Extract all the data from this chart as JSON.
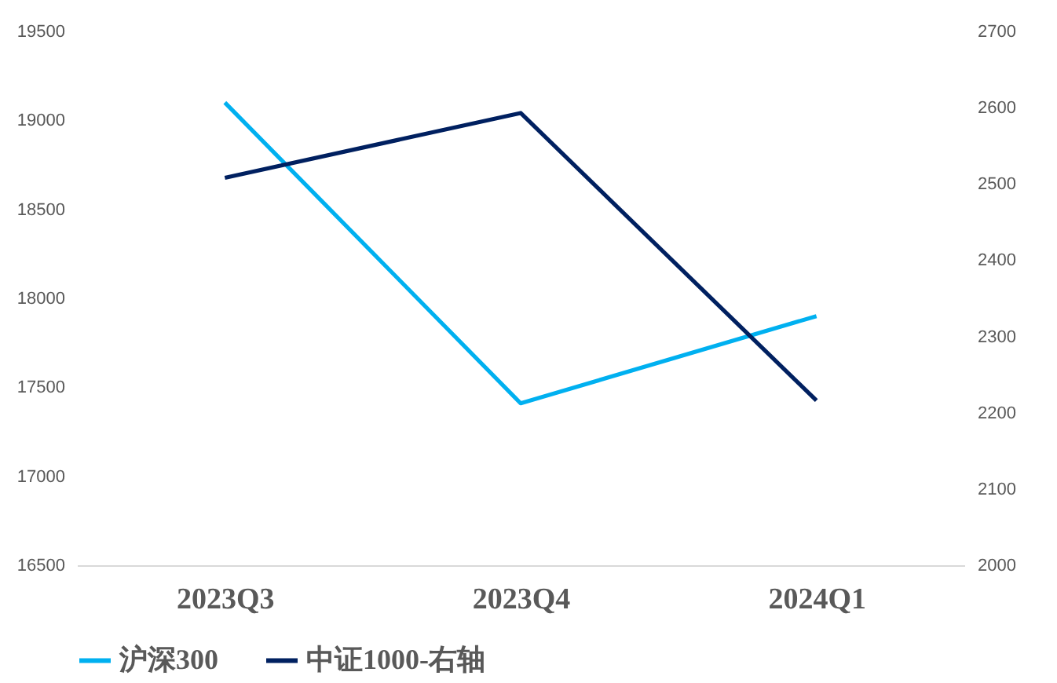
{
  "chart_data": {
    "type": "line",
    "categories": [
      "2023Q3",
      "2023Q4",
      "2024Q1"
    ],
    "series": [
      {
        "name": "沪深300",
        "color": "#00b0f0",
        "values": [
          19100,
          17410,
          17900
        ]
      },
      {
        "name": "中证1000-右轴",
        "color": "#002060",
        "values": [
          2508,
          2593,
          2216
        ],
        "axis": "y2"
      }
    ],
    "ylim": [
      16500,
      19500
    ],
    "yticks": [
      16500,
      17000,
      17500,
      18000,
      18500,
      19000,
      19500
    ],
    "y2lim": [
      2000,
      2700
    ],
    "y2ticks": [
      2000,
      2100,
      2200,
      2300,
      2400,
      2500,
      2600,
      2700
    ],
    "legend": "bottom",
    "grid": false,
    "marker": "none",
    "line_style": "solid"
  }
}
